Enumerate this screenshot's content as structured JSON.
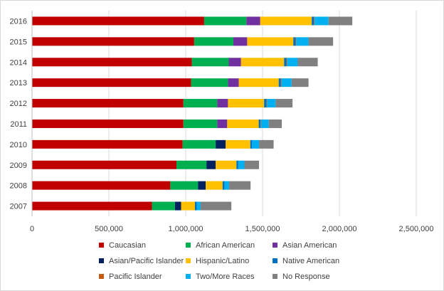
{
  "chart_data": {
    "type": "bar",
    "orientation": "horizontal",
    "stacked": true,
    "categories": [
      "2016",
      "2015",
      "2014",
      "2013",
      "2012",
      "2011",
      "2010",
      "2009",
      "2008",
      "2007"
    ],
    "series": [
      {
        "name": "Caucasian",
        "color": "#c00000",
        "values": [
          1120000,
          1055000,
          1040000,
          1035000,
          985000,
          985000,
          980000,
          940000,
          900000,
          780000
        ]
      },
      {
        "name": "African American",
        "color": "#00b050",
        "values": [
          275000,
          255000,
          240000,
          240000,
          220000,
          220000,
          215000,
          195000,
          180000,
          150000
        ]
      },
      {
        "name": "Asian American",
        "color": "#7030a0",
        "values": [
          90000,
          90000,
          80000,
          70000,
          70000,
          65000,
          0,
          0,
          0,
          0
        ]
      },
      {
        "name": "Asian/Pacific Islander",
        "color": "#002060",
        "values": [
          0,
          0,
          0,
          0,
          0,
          0,
          65000,
          60000,
          50000,
          40000
        ]
      },
      {
        "name": "Hispanic/Latino",
        "color": "#ffc000",
        "values": [
          335000,
          300000,
          280000,
          260000,
          235000,
          205000,
          160000,
          135000,
          110000,
          90000
        ]
      },
      {
        "name": "Native American",
        "color": "#0070c0",
        "values": [
          15000,
          15000,
          15000,
          15000,
          15000,
          12000,
          12000,
          12000,
          12000,
          12000
        ]
      },
      {
        "name": "Pacific Islander",
        "color": "#c55a11",
        "values": [
          4000,
          4000,
          4000,
          4000,
          3000,
          3000,
          0,
          0,
          0,
          0
        ]
      },
      {
        "name": "Two/More Races",
        "color": "#00b0f0",
        "values": [
          90000,
          80000,
          70000,
          65000,
          57000,
          50000,
          45000,
          40000,
          30000,
          25000
        ]
      },
      {
        "name": "No Response",
        "color": "#808080",
        "values": [
          155000,
          160000,
          130000,
          110000,
          110000,
          85000,
          95000,
          95000,
          140000,
          200000
        ]
      }
    ],
    "x_ticks": [
      "0",
      "500,000",
      "1,000,000",
      "1,500,000",
      "2,000,000",
      "2,500,000"
    ],
    "xlim": [
      0,
      2500000
    ],
    "title": "",
    "xlabel": "",
    "ylabel": "",
    "gridlines": "vertical",
    "legend_position": "bottom"
  }
}
